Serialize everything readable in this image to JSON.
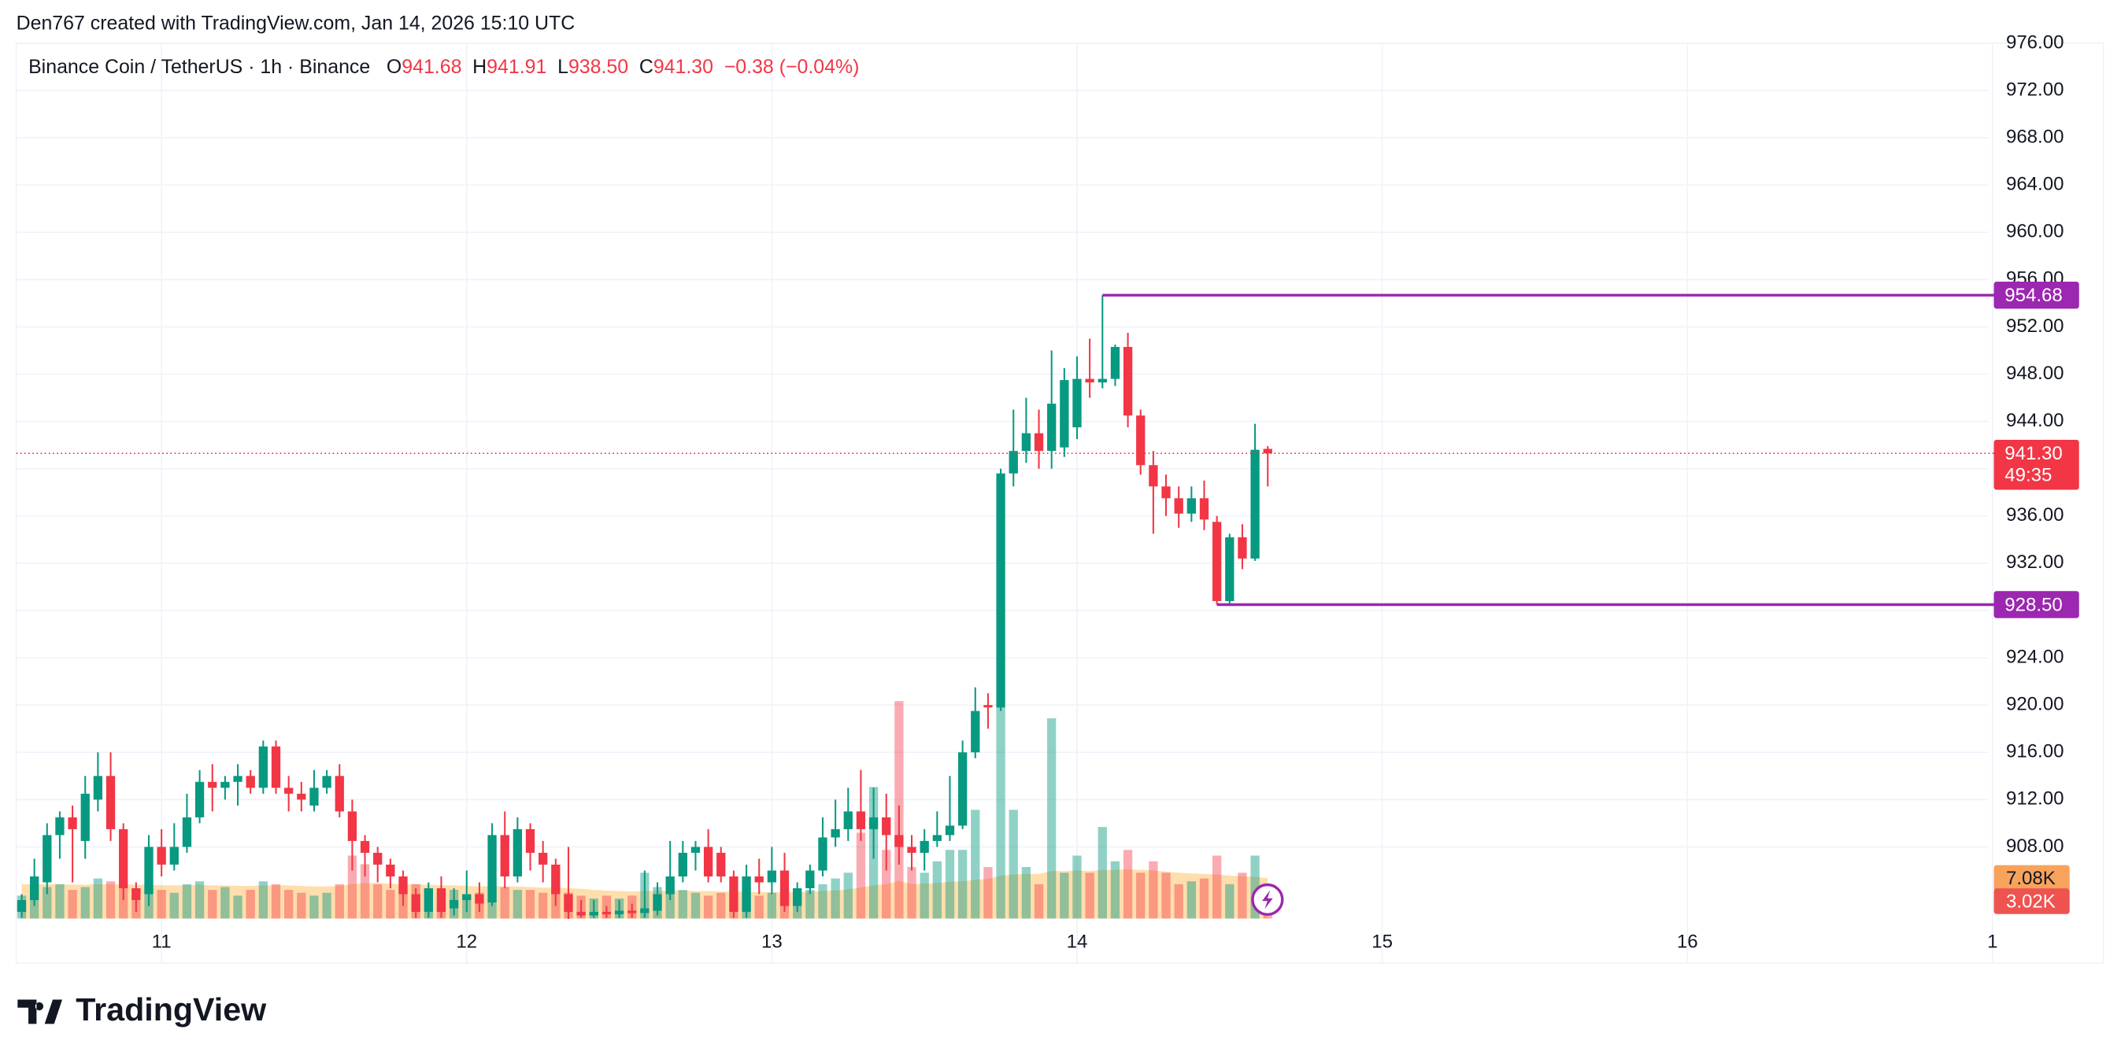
{
  "header": {
    "attribution": "Den767 created with TradingView.com, Jan 14, 2026 15:10 UTC"
  },
  "footer": {
    "brand": "TradingView"
  },
  "chart_data": {
    "type": "candlestick",
    "title": "Binance Coin / TetherUS · 1h · Binance",
    "legend": [
      {
        "key": "O",
        "label": "941.68"
      },
      {
        "key": "H",
        "label": "941.91"
      },
      {
        "key": "L",
        "label": "938.50"
      },
      {
        "key": "C",
        "label": "941.30"
      }
    ],
    "change": "−0.38 (−0.04%)",
    "up_color": "#089981",
    "down_color": "#f23645",
    "categories": [
      null,
      null,
      null,
      null,
      null,
      null,
      null,
      null,
      null,
      null,
      null,
      null,
      null,
      null,
      null,
      null,
      null,
      null,
      null,
      null,
      null,
      null,
      null,
      null,
      null,
      null,
      null,
      null,
      null,
      null,
      null,
      null,
      null,
      null,
      null,
      null,
      null,
      null,
      null,
      null,
      null,
      null,
      null,
      null,
      null,
      null,
      null,
      null,
      null,
      null,
      null,
      null,
      null,
      null,
      null,
      null,
      null,
      null,
      null,
      null,
      null,
      null,
      null,
      null,
      null,
      null,
      null,
      null,
      null,
      null,
      null,
      null,
      null,
      null,
      null,
      null,
      null,
      null,
      null,
      null,
      null,
      null,
      null,
      null,
      null,
      null,
      null,
      null,
      null,
      null,
      null,
      null,
      null,
      null,
      null,
      null,
      null,
      null,
      null
    ],
    "open": [
      902.5,
      903.5,
      905,
      909,
      910.5,
      908.5,
      912,
      914,
      909.5,
      904.5,
      904,
      908,
      906.5,
      908,
      910.5,
      913.5,
      913,
      913.5,
      914,
      913,
      916.5,
      913,
      912.5,
      911.5,
      913,
      914,
      911,
      908.5,
      907.5,
      906.5,
      905.5,
      904,
      902.5,
      904.5,
      902.8,
      903.5,
      904,
      903.3,
      909,
      905.5,
      909.5,
      907.5,
      906.5,
      904,
      902.5,
      902.2,
      902.5,
      902.3,
      902.6,
      902.4,
      902.6,
      904,
      905.5,
      907.5,
      908,
      907.5,
      905.5,
      902.5,
      905.5,
      905,
      906,
      903,
      904.5,
      906,
      908.8,
      909.5,
      911,
      909.5,
      910.5,
      909,
      908,
      907.5,
      908.5,
      909,
      909.8,
      916,
      920,
      919.8,
      939.6,
      941.5,
      943,
      941.5,
      941.8,
      943.5,
      947.6,
      947.3,
      947.6,
      950.3,
      944.5,
      940.3,
      938.5,
      937.5,
      936.2,
      937.5,
      935.5,
      928.8,
      934.2,
      932.4,
      941.68
    ],
    "high": [
      904,
      907,
      910,
      911,
      911.5,
      914,
      916,
      916,
      910,
      905,
      909,
      909.5,
      910,
      912.5,
      914.5,
      915,
      914,
      915,
      914.5,
      917,
      917,
      914,
      913.5,
      914.5,
      914.5,
      915,
      912,
      909,
      908,
      907,
      906,
      904.5,
      905,
      905.5,
      904.5,
      906,
      905,
      910,
      911,
      910.5,
      910,
      908.5,
      907,
      908,
      903.5,
      903.5,
      903,
      903.5,
      903.2,
      906,
      905,
      908.5,
      908.5,
      908.5,
      909.5,
      908,
      906,
      906.5,
      907,
      908,
      907.5,
      905,
      906.5,
      910.5,
      912,
      913,
      914.5,
      913,
      912.5,
      911.5,
      909,
      909.5,
      911,
      914,
      917,
      921.5,
      921,
      940,
      945,
      946,
      945,
      950,
      948.5,
      949.5,
      951,
      954.68,
      950.5,
      951.5,
      945,
      941.5,
      939.5,
      938.5,
      938.5,
      939,
      936,
      934.5,
      935.3,
      943.8,
      941.91
    ],
    "low": [
      902,
      903,
      904,
      907,
      905,
      907,
      911,
      908.5,
      903.5,
      902.5,
      903,
      905.5,
      906,
      907.5,
      910,
      911,
      912,
      911.5,
      912.5,
      912.5,
      912.5,
      911,
      911,
      911,
      912.5,
      910.5,
      906,
      905.5,
      905,
      904.5,
      903,
      902,
      902,
      902,
      902.2,
      902.5,
      902.5,
      903,
      904.5,
      905,
      906,
      905,
      903,
      901.9,
      902,
      902,
      902,
      902,
      902,
      902,
      902.2,
      903.5,
      905,
      906,
      905,
      905,
      902,
      902,
      904,
      904,
      902.5,
      902.5,
      904,
      905.5,
      908,
      908.5,
      908.5,
      907,
      906,
      906.5,
      906,
      906,
      908,
      908.5,
      909.5,
      915.5,
      918,
      919.5,
      938.5,
      940.5,
      940,
      940,
      941,
      942.5,
      946,
      946.8,
      947,
      943.5,
      939.5,
      934.5,
      936,
      935,
      935.5,
      934.8,
      928.5,
      928.5,
      931.5,
      932.2,
      938.5
    ],
    "close": [
      903.5,
      905.5,
      909,
      910.5,
      909.5,
      912.5,
      914,
      909.5,
      904.5,
      903.5,
      908,
      906.5,
      908,
      910.5,
      913.5,
      913,
      913.5,
      914,
      913,
      916.5,
      913,
      912.5,
      912,
      913,
      914,
      911,
      908.5,
      907.5,
      906.5,
      905.5,
      904,
      902.5,
      904.5,
      902.5,
      903.5,
      904,
      903.2,
      909,
      905.5,
      909.5,
      907.5,
      906.5,
      904,
      902.5,
      902.2,
      902.5,
      902.3,
      902.6,
      902.4,
      902.8,
      904,
      905.5,
      907.5,
      908,
      905.5,
      905.5,
      902.5,
      905.5,
      905,
      906,
      903,
      904.5,
      906,
      908.8,
      909.5,
      911,
      909.5,
      910.5,
      909,
      908,
      907.5,
      908.5,
      909,
      909.8,
      916,
      919.5,
      919.8,
      939.6,
      941.5,
      943,
      941.5,
      945.5,
      947.5,
      947.6,
      947.3,
      947.6,
      950.3,
      944.5,
      940.3,
      938.5,
      937.5,
      936.2,
      937.5,
      935.7,
      928.8,
      934.2,
      932.4,
      941.6,
      941.3
    ],
    "volume": {
      "values": [
        4000,
        6000,
        5500,
        6000,
        5000,
        5500,
        7000,
        6500,
        6000,
        5000,
        5500,
        5000,
        4500,
        6000,
        6500,
        5000,
        5500,
        4000,
        5000,
        6500,
        6000,
        5000,
        4500,
        4000,
        4500,
        6000,
        11000,
        9500,
        6000,
        5000,
        5500,
        6000,
        5000,
        4500,
        5000,
        4000,
        4500,
        6500,
        5500,
        5000,
        5000,
        4500,
        6000,
        4500,
        4000,
        3500,
        4000,
        3500,
        4000,
        8000,
        5500,
        6500,
        5000,
        4500,
        4000,
        4500,
        5000,
        5500,
        4000,
        4500,
        5000,
        4500,
        5000,
        6000,
        7000,
        8000,
        15000,
        23000,
        12000,
        38000,
        9000,
        8000,
        10000,
        12000,
        12000,
        19000,
        9000,
        37000,
        19000,
        9000,
        6000,
        35000,
        8000,
        11000,
        8000,
        16000,
        10000,
        12000,
        8000,
        10000,
        8000,
        6000,
        6500,
        7000,
        11000,
        6000,
        8000,
        11000,
        3020
      ],
      "ma": [
        6000,
        6000,
        6000,
        6000,
        5900,
        5900,
        6000,
        6000,
        6000,
        5900,
        5900,
        5800,
        5800,
        5800,
        5900,
        5800,
        5800,
        5700,
        5700,
        5800,
        5800,
        5800,
        5700,
        5600,
        5600,
        5700,
        6000,
        6200,
        6200,
        6100,
        6000,
        6000,
        5900,
        5800,
        5800,
        5700,
        5600,
        5700,
        5600,
        5600,
        5500,
        5400,
        5400,
        5300,
        5200,
        5000,
        4900,
        4800,
        4700,
        4800,
        4800,
        4900,
        4900,
        4800,
        4800,
        4700,
        4700,
        4700,
        4600,
        4600,
        4600,
        4600,
        4700,
        4800,
        4900,
        5100,
        5400,
        5800,
        6000,
        6600,
        6000,
        6100,
        6200,
        6400,
        6500,
        6800,
        6900,
        7500,
        7700,
        7800,
        7800,
        8300,
        8300,
        8400,
        8300,
        8500,
        8500,
        8600,
        8500,
        8400,
        8200,
        8000,
        7900,
        7800,
        7700,
        7500,
        7400,
        7300,
        7080
      ],
      "ylim": [
        0,
        153000
      ],
      "up_color": "rgba(8,153,129,0.45)",
      "down_color": "rgba(242,54,69,0.42)",
      "ma_color": "rgba(255,152,0,0.32)",
      "ma_label": {
        "value": 7080,
        "label": "7.08K",
        "color": "#f7a35c"
      },
      "last_label": {
        "value": 3020,
        "label": "3.02K",
        "color": "#ef5350"
      }
    },
    "xlim": [
      -0.4255,
      163.72
    ],
    "xticks": [
      {
        "value": 11,
        "label": "11"
      },
      {
        "value": 35,
        "label": "12"
      },
      {
        "value": 59,
        "label": "13"
      },
      {
        "value": 83,
        "label": "14"
      },
      {
        "value": 107,
        "label": "15"
      },
      {
        "value": 131,
        "label": "16"
      },
      {
        "value": 155,
        "label": "1"
      }
    ],
    "ylim": [
      901.94,
      976
    ],
    "yticks": [
      {
        "value": 908,
        "label": "908.00"
      },
      {
        "value": 912,
        "label": "912.00"
      },
      {
        "value": 916,
        "label": "916.00"
      },
      {
        "value": 920,
        "label": "920.00"
      },
      {
        "value": 924,
        "label": "924.00"
      },
      {
        "value": 928,
        "label": "928.00"
      },
      {
        "value": 932,
        "label": "932.00"
      },
      {
        "value": 936,
        "label": "936.00"
      },
      {
        "value": 940,
        "label": "940.00"
      },
      {
        "value": 944,
        "label": "944.00"
      },
      {
        "value": 948,
        "label": "948.00"
      },
      {
        "value": 952,
        "label": "952.00"
      },
      {
        "value": 956,
        "label": "956.00"
      },
      {
        "value": 960,
        "label": "960.00"
      },
      {
        "value": 964,
        "label": "964.00"
      },
      {
        "value": 968,
        "label": "968.00"
      },
      {
        "value": 972,
        "label": "972.00"
      },
      {
        "value": 976,
        "label": "976.00"
      }
    ],
    "grid": true,
    "levels": [
      {
        "value": 954.68,
        "label": "954.68",
        "color": "#9c27b0",
        "source": "high"
      },
      {
        "value": 928.5,
        "label": "928.50",
        "color": "#9c27b0",
        "source": "low"
      }
    ],
    "price_line": {
      "value": 941.3,
      "label": "941.30",
      "countdown": "49:35",
      "color": "#f23645"
    }
  }
}
